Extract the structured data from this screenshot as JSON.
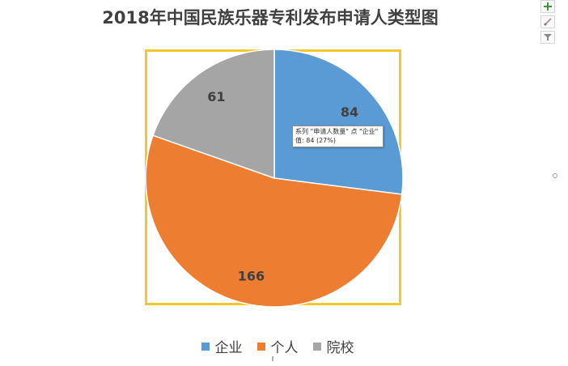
{
  "chart_data": {
    "type": "pie",
    "title": "2018年中国民族乐器专利发布申请人类型图",
    "categories": [
      "企业",
      "个人",
      "院校"
    ],
    "values": [
      84,
      166,
      61
    ],
    "series": [
      {
        "name": "申请人数量",
        "values": [
          84,
          166,
          61
        ]
      }
    ],
    "colors": [
      "#5b9bd5",
      "#ed7d31",
      "#a5a5a5"
    ],
    "legend_position": "bottom",
    "data_labels": true
  },
  "tooltip": {
    "line1": "系列 \"申请人数量\" 点 \"企业\"",
    "line2": "值: 84 (27%)"
  },
  "frame_color": "#f2c82f",
  "toolbar": {
    "icons": [
      "plus-icon",
      "brush-icon",
      "filter-icon"
    ]
  }
}
